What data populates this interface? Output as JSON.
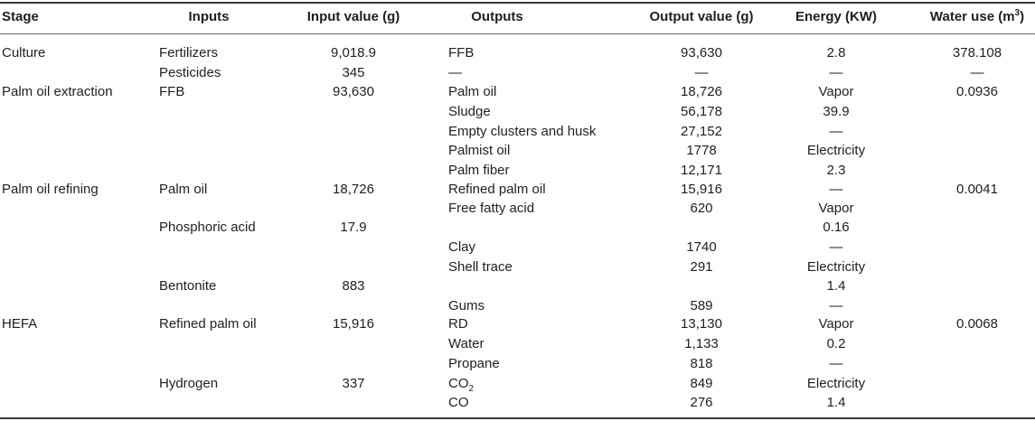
{
  "headers": {
    "stage": "Stage",
    "inputs": "Inputs",
    "input_value": "Input value (g)",
    "outputs": "Outputs",
    "output_value": "Output value (g)",
    "energy": "Energy (KW)",
    "water_use": "Water use (m",
    "water_use_sup": "3",
    "water_use_close": ")"
  },
  "cells": {
    "stage_culture": "Culture",
    "stage_extraction": "Palm oil extraction",
    "stage_refining": "Palm oil refining",
    "stage_hefa": "HEFA",
    "in_fertilizers": "Fertilizers",
    "in_fertilizers_val": "9,018.9",
    "in_pesticides": "Pesticides",
    "in_pesticides_val": "345",
    "in_ffb": "FFB",
    "in_ffb_val": "93,630",
    "in_palm_oil": "Palm oil",
    "in_palm_oil_val": "18,726",
    "in_phosphoric": "Phosphoric acid",
    "in_phosphoric_val": "17.9",
    "in_bentonite": "Bentonite",
    "in_bentonite_val": "883",
    "in_refined": "Refined palm oil",
    "in_refined_val": "15,916",
    "in_hydrogen": "Hydrogen",
    "in_hydrogen_val": "337",
    "out_ffb": "FFB",
    "out_ffb_val": "93,630",
    "out_dash1": "—",
    "out_dash1_val": "—",
    "out_palm_oil": "Palm oil",
    "out_palm_oil_val": "18,726",
    "out_sludge": "Sludge",
    "out_sludge_val": "56,178",
    "out_empty": "Empty clusters and husk",
    "out_empty_val": "27,152",
    "out_palmist": "Palmist oil",
    "out_palmist_val": "1778",
    "out_fiber": "Palm fiber",
    "out_fiber_val": "12,171",
    "out_refined": "Refined palm oil",
    "out_refined_val": "15,916",
    "out_ffa": "Free fatty acid",
    "out_ffa_val": "620",
    "out_clay": "Clay",
    "out_clay_val": "1740",
    "out_shell": "Shell trace",
    "out_shell_val": "291",
    "out_gums": "Gums",
    "out_gums_val": "589",
    "out_rd": "RD",
    "out_rd_val": "13,130",
    "out_water": "Water",
    "out_water_val": "1,133",
    "out_propane": "Propane",
    "out_propane_val": "818",
    "out_co2": "CO",
    "out_co2_sub": "2",
    "out_co2_val": "849",
    "out_co": "CO",
    "out_co_val": "276",
    "en_1": "2.8",
    "en_2": "—",
    "en_3": "Vapor",
    "en_4": "39.9",
    "en_5": "—",
    "en_6": "Electricity",
    "en_7": "2.3",
    "en_8": "—",
    "en_9": "Vapor",
    "en_10": "0.16",
    "en_11": "—",
    "en_12": "Electricity",
    "en_13": "1.4",
    "en_14": "—",
    "en_15": "Vapor",
    "en_16": "0.2",
    "en_17": "—",
    "en_18": "Electricity",
    "en_19": "1.4",
    "wu_culture": "378.108",
    "wu_dash": "—",
    "wu_extraction": "0.0936",
    "wu_refining": "0.0041",
    "wu_hefa": "0.0068"
  }
}
